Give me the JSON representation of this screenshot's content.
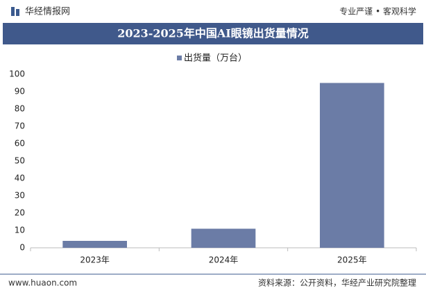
{
  "header": {
    "brand": "华经情报网",
    "slogan": "专业严谨 • 客观科学"
  },
  "chart_data": {
    "type": "bar",
    "title": "2023-2025年中国AI眼镜出货量情况",
    "categories": [
      "2023年",
      "2024年",
      "2025年"
    ],
    "series": [
      {
        "name": "出货量（万台）",
        "color": "#6b7ca6",
        "values": [
          4,
          11,
          95
        ]
      }
    ],
    "ylim": [
      0,
      100
    ],
    "yticks": [
      0,
      10,
      20,
      30,
      40,
      50,
      60,
      70,
      80,
      90,
      100
    ],
    "grid": false,
    "legend": "top"
  },
  "footer": {
    "website": "www.huaon.com",
    "source": "资料来源：公开资料，华经产业研究院整理"
  }
}
